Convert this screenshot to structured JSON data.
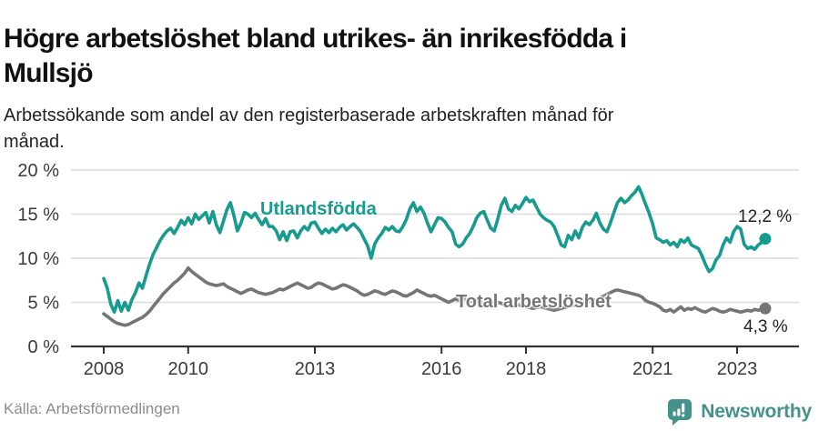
{
  "header": {
    "title_lines": [
      "Högre arbetslöshet bland utrikes- än inrikesfödda i",
      "Mullsjö"
    ],
    "subtitle_lines": [
      "Arbetssökande som andel av den registerbaserade arbetskraften månad för",
      "månad."
    ]
  },
  "footer": {
    "source": "Källa: Arbetsförmedlingen",
    "brand": "Newsworthy"
  },
  "colors": {
    "accent_teal": "#169b8f",
    "line_gray": "#757575",
    "grid": "#dcdcdc",
    "axis": "#333333",
    "brand_teal": "#44938b"
  },
  "chart_data": {
    "type": "line",
    "title": "Högre arbetslöshet bland utrikes- än inrikesfödda i Mullsjö",
    "subtitle": "Arbetssökande som andel av den registerbaserade arbetskraften månad för månad.",
    "xlabel": "",
    "ylabel": "",
    "ylim": [
      0,
      20
    ],
    "grid": "horizontal",
    "legend_position": "inline-labels",
    "x_start_year": 2008,
    "x_step_months": 1,
    "x_ticks": [
      {
        "year": 2008,
        "label": "2008"
      },
      {
        "year": 2010,
        "label": "2010"
      },
      {
        "year": 2013,
        "label": "2013"
      },
      {
        "year": 2016,
        "label": "2016"
      },
      {
        "year": 2018,
        "label": "2018"
      },
      {
        "year": 2021,
        "label": "2021"
      },
      {
        "year": 2023,
        "label": "2023"
      }
    ],
    "y_ticks": [
      {
        "value": 0,
        "label": "0 %"
      },
      {
        "value": 5,
        "label": "5 %"
      },
      {
        "value": 10,
        "label": "10 %"
      },
      {
        "value": 15,
        "label": "15 %"
      },
      {
        "value": 20,
        "label": "20 %"
      }
    ],
    "series": [
      {
        "name": "Utlandsfödda",
        "color": "#169b8f",
        "end_label": "12,2 %",
        "end_value": 12.2,
        "values": [
          7.7,
          6.6,
          4.8,
          3.9,
          5.2,
          4.0,
          5.0,
          4.1,
          5.3,
          6.1,
          7.2,
          6.6,
          8.0,
          9.3,
          10.4,
          11.2,
          12.0,
          12.6,
          13.1,
          13.4,
          12.8,
          13.5,
          14.3,
          13.8,
          14.6,
          13.9,
          15.0,
          14.4,
          14.8,
          15.2,
          14.0,
          15.3,
          13.8,
          12.9,
          14.2,
          15.5,
          16.3,
          14.8,
          13.1,
          14.0,
          15.2,
          15.0,
          14.6,
          15.1,
          14.4,
          13.8,
          14.5,
          13.6,
          13.6,
          13.1,
          12.1,
          13.0,
          12.0,
          13.0,
          13.1,
          12.3,
          13.1,
          13.6,
          13.2,
          14.0,
          14.1,
          13.4,
          12.8,
          13.3,
          12.9,
          13.4,
          13.0,
          13.5,
          13.8,
          13.2,
          13.6,
          13.9,
          13.5,
          13.0,
          12.2,
          11.4,
          10.0,
          11.6,
          12.3,
          12.8,
          13.5,
          13.2,
          13.6,
          13.1,
          13.0,
          13.6,
          14.4,
          15.6,
          16.3,
          15.3,
          15.8,
          15.1,
          14.0,
          13.0,
          13.8,
          14.6,
          14.5,
          14.1,
          13.5,
          13.0,
          11.6,
          11.3,
          11.6,
          12.3,
          12.8,
          13.6,
          14.6,
          15.1,
          15.3,
          14.3,
          13.4,
          13.1,
          14.5,
          16.0,
          16.8,
          15.6,
          15.3,
          16.0,
          15.6,
          16.2,
          16.9,
          16.4,
          16.6,
          15.8,
          15.0,
          14.6,
          14.3,
          14.1,
          13.6,
          12.6,
          11.5,
          11.3,
          12.6,
          12.1,
          13.1,
          12.3,
          13.5,
          14.1,
          13.8,
          14.3,
          15.1,
          14.0,
          13.3,
          13.0,
          14.0,
          15.2,
          16.3,
          16.8,
          16.3,
          16.6,
          17.1,
          17.5,
          18.1,
          17.2,
          16.1,
          15.1,
          13.9,
          12.3,
          12.1,
          11.8,
          12.0,
          11.5,
          11.8,
          11.3,
          12.1,
          11.8,
          12.3,
          11.5,
          11.3,
          11.1,
          10.3,
          9.3,
          8.5,
          8.8,
          9.8,
          10.3,
          11.5,
          12.3,
          11.8,
          13.0,
          13.6,
          13.3,
          11.6,
          11.1,
          11.3,
          11.0,
          11.5,
          11.8,
          12.2
        ]
      },
      {
        "name": "Total arbetslöshet",
        "color": "#757575",
        "end_label": "4,3 %",
        "end_value": 4.3,
        "values": [
          3.7,
          3.4,
          3.1,
          2.8,
          2.6,
          2.5,
          2.4,
          2.5,
          2.7,
          2.9,
          3.1,
          3.3,
          3.6,
          4.0,
          4.5,
          5.0,
          5.5,
          6.0,
          6.4,
          6.8,
          7.2,
          7.5,
          7.9,
          8.3,
          8.9,
          8.5,
          8.2,
          7.9,
          7.6,
          7.3,
          7.1,
          7.0,
          6.9,
          7.0,
          7.1,
          6.8,
          6.6,
          6.4,
          6.2,
          6.0,
          6.2,
          6.4,
          6.5,
          6.3,
          6.1,
          6.0,
          5.9,
          6.0,
          6.1,
          6.3,
          6.5,
          6.4,
          6.6,
          6.8,
          7.0,
          7.2,
          7.0,
          6.8,
          6.6,
          6.7,
          7.0,
          7.2,
          7.1,
          6.9,
          6.7,
          6.5,
          6.6,
          6.8,
          7.0,
          6.9,
          6.7,
          6.5,
          6.3,
          6.0,
          5.8,
          5.9,
          6.1,
          6.3,
          6.2,
          6.0,
          5.9,
          6.1,
          6.3,
          6.2,
          6.0,
          5.8,
          5.7,
          5.9,
          6.1,
          6.4,
          6.2,
          6.0,
          5.8,
          5.7,
          5.8,
          5.6,
          5.4,
          5.2,
          5.0,
          5.2,
          5.4,
          5.2,
          5.5,
          5.3,
          5.1,
          5.0,
          5.2,
          5.0,
          4.9,
          4.8,
          4.9,
          5.1,
          5.0,
          4.9,
          4.7,
          4.6,
          4.7,
          4.8,
          4.7,
          4.6,
          4.5,
          4.4,
          4.3,
          4.4,
          4.5,
          4.4,
          4.3,
          4.2,
          4.1,
          4.2,
          4.3,
          4.4,
          4.5,
          4.6,
          4.7,
          4.8,
          4.9,
          5.0,
          5.1,
          5.2,
          5.3,
          5.5,
          5.7,
          5.9,
          6.1,
          6.3,
          6.4,
          6.3,
          6.2,
          6.1,
          6.0,
          5.9,
          5.8,
          5.6,
          5.2,
          5.0,
          4.9,
          4.7,
          4.5,
          4.1,
          4.0,
          4.2,
          3.9,
          4.2,
          4.5,
          4.1,
          4.3,
          4.2,
          4.4,
          4.2,
          4.0,
          3.9,
          4.1,
          4.3,
          4.2,
          4.0,
          3.9,
          4.0,
          4.2,
          4.1,
          4.0,
          3.9,
          4.0,
          4.1,
          4.0,
          4.2,
          4.1,
          4.2,
          4.3
        ]
      }
    ]
  }
}
